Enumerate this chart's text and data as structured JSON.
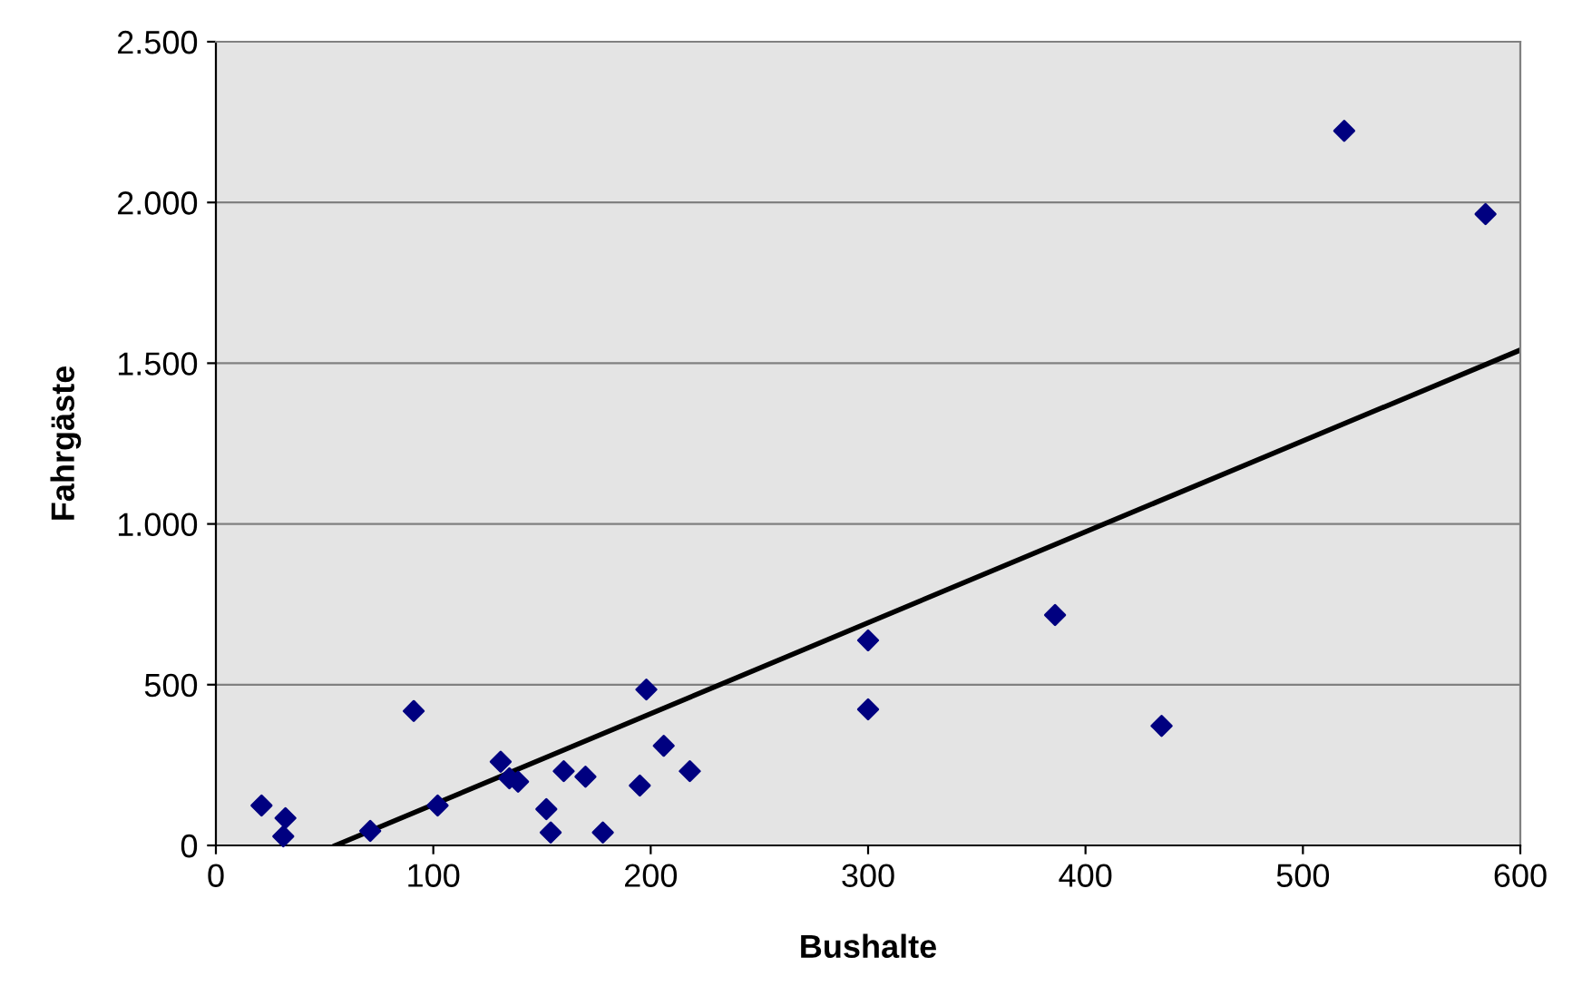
{
  "chart_data": {
    "type": "scatter",
    "xlabel": "Bushalte",
    "ylabel": "Fahrgäste",
    "xlim": [
      0,
      600
    ],
    "xticks": [
      0,
      100,
      200,
      300,
      400,
      500,
      600
    ],
    "ylim": [
      0,
      2500
    ],
    "yticks": [
      0,
      500,
      {
        "value": 1000,
        "label": "1.000"
      },
      {
        "value": 1500,
        "label": "1.500"
      },
      {
        "value": 2000,
        "label": "2.000"
      },
      {
        "value": 2500,
        "label": "2.500"
      }
    ],
    "grid": "y",
    "legend": false,
    "series": [
      {
        "marker": "diamond",
        "color": "#000080",
        "x": [
          21,
          32,
          31,
          71,
          91,
          102,
          131,
          135,
          139,
          160,
          170,
          152,
          154,
          178,
          195,
          198,
          206,
          218,
          300,
          300,
          386,
          435,
          519,
          584
        ],
        "values": [
          124,
          85,
          28,
          45,
          418,
          124,
          260,
          209,
          198,
          231,
          214,
          113,
          40,
          40,
          186,
          485,
          310,
          231,
          638,
          423,
          717,
          372,
          2223,
          1964
        ]
      },
      {
        "type": "line",
        "color": "#000000",
        "x": [
          55,
          600
        ],
        "values": [
          0,
          1541
        ]
      }
    ]
  }
}
